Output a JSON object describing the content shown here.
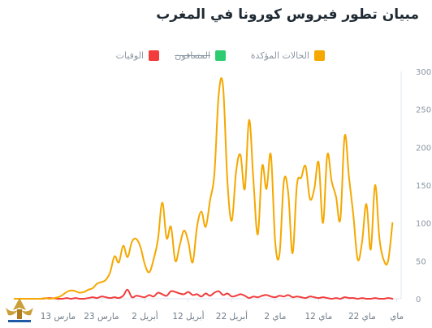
{
  "title": "مبيان تطور فيروس كورونا في المغرب",
  "legend": [
    {
      "label": "الحالات المؤكدة",
      "color": "#f5a800",
      "hidden": false
    },
    {
      "label": "المتعافون",
      "color": "#2ecc71",
      "hidden": true
    },
    {
      "label": "الوفيات",
      "color": "#f23c3c",
      "hidden": false
    }
  ],
  "chart_data": {
    "type": "line",
    "title": "مبيان تطور فيروس كورونا في المغرب",
    "xlabel": "",
    "ylabel": "",
    "ylim": [
      0,
      300
    ],
    "yticks": [
      "0",
      "50",
      "100",
      "150",
      "200",
      "250",
      "300"
    ],
    "xticks": [
      {
        "label": "مارس 13",
        "day": 10
      },
      {
        "label": "مارس 23",
        "day": 20
      },
      {
        "label": "أبريل 2",
        "day": 30
      },
      {
        "label": "أبريل 12",
        "day": 40
      },
      {
        "label": "أبريل 22",
        "day": 50
      },
      {
        "label": "ماي 2",
        "day": 60
      },
      {
        "label": "ماي 12",
        "day": 70
      },
      {
        "label": "ماي 22",
        "day": 80
      },
      {
        "label": "ماي",
        "day": 88
      }
    ],
    "x_start": "2020-03-03",
    "grid": false,
    "legend_position": "top",
    "series": [
      {
        "name": "الحالات المؤكدة",
        "color": "#f5a800",
        "x": [
          0,
          2,
          4,
          6,
          7,
          8,
          10,
          11,
          12,
          13,
          14,
          15,
          16,
          17,
          18,
          19,
          20,
          21,
          22,
          23,
          24,
          25,
          26,
          27,
          28,
          29,
          30,
          31,
          32,
          33,
          34,
          35,
          36,
          37,
          38,
          39,
          40,
          41,
          42,
          43,
          44,
          45,
          46,
          47,
          48,
          49,
          50,
          51,
          52,
          53,
          54,
          55,
          56,
          57,
          58,
          59,
          60,
          61,
          62,
          63,
          64,
          65,
          66,
          67,
          68,
          69,
          70,
          71,
          72,
          73,
          74,
          75,
          76,
          77,
          78,
          79,
          80,
          81,
          82,
          83,
          84,
          85,
          86,
          87
        ],
        "values": [
          0,
          0,
          0,
          0,
          1,
          0,
          2,
          5,
          9,
          11,
          10,
          8,
          9,
          12,
          14,
          20,
          22,
          25,
          35,
          56,
          48,
          70,
          55,
          75,
          79,
          68,
          45,
          35,
          52,
          78,
          127,
          80,
          95,
          50,
          70,
          90,
          75,
          48,
          95,
          115,
          95,
          130,
          165,
          270,
          280,
          155,
          103,
          168,
          190,
          145,
          236,
          155,
          85,
          175,
          145,
          190,
          75,
          59,
          155,
          140,
          60,
          150,
          160,
          175,
          132,
          145,
          180,
          100,
          190,
          155,
          135,
          105,
          215,
          160,
          110,
          52,
          75,
          125,
          65,
          150,
          80,
          51,
          50,
          100
        ]
      },
      {
        "name": "الوفيات",
        "color": "#f23c3c",
        "x": [
          0,
          3,
          6,
          8,
          10,
          11,
          12,
          13,
          14,
          15,
          16,
          17,
          18,
          19,
          20,
          21,
          22,
          23,
          24,
          25,
          26,
          27,
          28,
          29,
          30,
          31,
          32,
          33,
          34,
          35,
          36,
          37,
          38,
          39,
          40,
          41,
          42,
          43,
          44,
          45,
          46,
          47,
          48,
          49,
          50,
          51,
          52,
          53,
          54,
          55,
          56,
          57,
          58,
          59,
          60,
          61,
          62,
          63,
          64,
          65,
          66,
          67,
          68,
          69,
          70,
          71,
          72,
          73,
          74,
          75,
          76,
          77,
          78,
          79,
          80,
          81,
          82,
          83,
          84,
          85,
          86,
          87
        ],
        "values": [
          0,
          0,
          0,
          1,
          0,
          0,
          1,
          0,
          1,
          0,
          0,
          1,
          2,
          1,
          3,
          2,
          1,
          2,
          1,
          4,
          12,
          2,
          4,
          3,
          2,
          5,
          3,
          8,
          6,
          4,
          10,
          9,
          7,
          6,
          9,
          5,
          6,
          3,
          7,
          4,
          8,
          10,
          5,
          7,
          3,
          4,
          6,
          4,
          1,
          3,
          2,
          4,
          5,
          3,
          2,
          4,
          3,
          5,
          2,
          3,
          2,
          1,
          3,
          2,
          1,
          2,
          1,
          0,
          1,
          0,
          2,
          1,
          1,
          0,
          1,
          0,
          0,
          1,
          0,
          0,
          1,
          0
        ]
      }
    ]
  }
}
